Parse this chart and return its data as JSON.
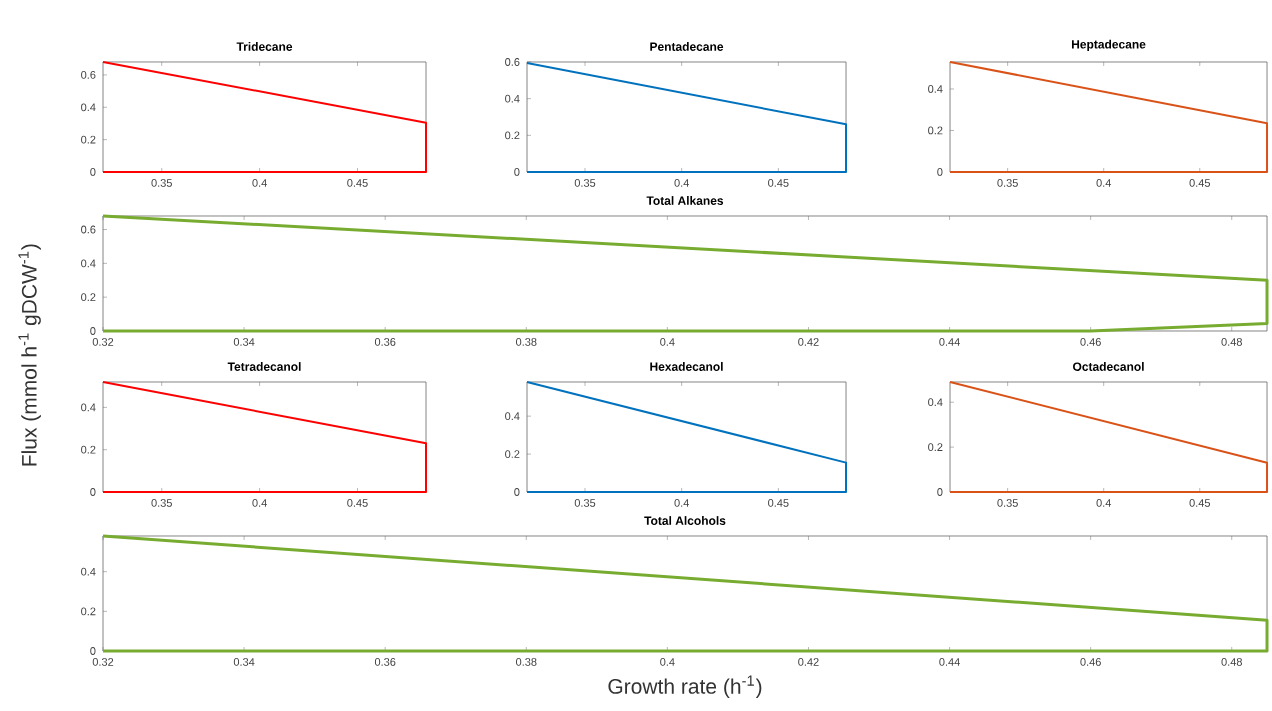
{
  "chart_data": [
    {
      "type": "line",
      "title": "Tridecane",
      "xlim": [
        0.32,
        0.485
      ],
      "xticks": [
        0.35,
        0.4,
        0.45
      ],
      "ylim": [
        0,
        0.68
      ],
      "yticks": [
        0,
        0.2,
        0.4,
        0.6
      ],
      "series": [
        {
          "color": "#ff0000",
          "x": [
            0.32,
            0.485,
            0.485,
            0.32
          ],
          "values": [
            0.68,
            0.305,
            0,
            0
          ]
        }
      ]
    },
    {
      "type": "line",
      "title": "Pentadecane",
      "xlim": [
        0.32,
        0.485
      ],
      "xticks": [
        0.35,
        0.4,
        0.45
      ],
      "ylim": [
        0,
        0.6
      ],
      "yticks": [
        0,
        0.2,
        0.4,
        0.6
      ],
      "series": [
        {
          "color": "#0072bd",
          "x": [
            0.32,
            0.485,
            0.485,
            0.32
          ],
          "values": [
            0.595,
            0.26,
            0,
            0
          ]
        }
      ]
    },
    {
      "type": "line",
      "title": "Heptadecane",
      "xlim": [
        0.32,
        0.485
      ],
      "xticks": [
        0.35,
        0.4,
        0.45
      ],
      "ylim": [
        0,
        0.53
      ],
      "yticks": [
        0,
        0.2,
        0.4
      ],
      "series": [
        {
          "color": "#d95319",
          "x": [
            0.32,
            0.485,
            0.485,
            0.32
          ],
          "values": [
            0.53,
            0.235,
            0,
            0
          ]
        }
      ]
    },
    {
      "type": "line",
      "title": "Total Alkanes",
      "ylabel": "Flux (mmol h$^{-1}$ gDCW$^{-1}$)",
      "xlim": [
        0.32,
        0.485
      ],
      "xticks": [
        0.32,
        0.34,
        0.36,
        0.38,
        0.4,
        0.42,
        0.44,
        0.46,
        0.48
      ],
      "ylim": [
        0,
        0.68
      ],
      "yticks": [
        0,
        0.2,
        0.4,
        0.6
      ],
      "series": [
        {
          "color": "#77ac30",
          "x": [
            0.32,
            0.485,
            0.485,
            0.46,
            0.32
          ],
          "values": [
            0.68,
            0.3,
            0.045,
            0,
            0
          ]
        }
      ]
    },
    {
      "type": "line",
      "title": "Tetradecanol",
      "xlim": [
        0.32,
        0.485
      ],
      "xticks": [
        0.35,
        0.4,
        0.45
      ],
      "ylim": [
        0,
        0.52
      ],
      "yticks": [
        0,
        0.2,
        0.4
      ],
      "series": [
        {
          "color": "#ff0000",
          "x": [
            0.32,
            0.485,
            0.485,
            0.32
          ],
          "values": [
            0.52,
            0.23,
            0,
            0
          ]
        }
      ]
    },
    {
      "type": "line",
      "title": "Hexadecanol",
      "xlim": [
        0.32,
        0.485
      ],
      "xticks": [
        0.35,
        0.4,
        0.45
      ],
      "ylim": [
        0,
        0.58
      ],
      "yticks": [
        0,
        0.2,
        0.4
      ],
      "series": [
        {
          "color": "#0072bd",
          "x": [
            0.32,
            0.485,
            0.485,
            0.32
          ],
          "values": [
            0.58,
            0.155,
            0,
            0
          ]
        }
      ]
    },
    {
      "type": "line",
      "title": "Octadecanol",
      "xlim": [
        0.32,
        0.485
      ],
      "xticks": [
        0.35,
        0.4,
        0.45
      ],
      "ylim": [
        0,
        0.49
      ],
      "yticks": [
        0,
        0.2,
        0.4
      ],
      "series": [
        {
          "color": "#d95319",
          "x": [
            0.32,
            0.485,
            0.485,
            0.32
          ],
          "values": [
            0.49,
            0.13,
            0,
            0
          ]
        }
      ]
    },
    {
      "type": "line",
      "title": "Total Alcohols",
      "xlabel": "Growth rate (h$^{-1}$)",
      "xlim": [
        0.32,
        0.485
      ],
      "xticks": [
        0.32,
        0.34,
        0.36,
        0.38,
        0.4,
        0.42,
        0.44,
        0.46,
        0.48
      ],
      "ylim": [
        0,
        0.58
      ],
      "yticks": [
        0,
        0.2,
        0.4
      ],
      "series": [
        {
          "color": "#77ac30",
          "x": [
            0.32,
            0.485,
            0.485,
            0.32
          ],
          "values": [
            0.58,
            0.155,
            0,
            0
          ]
        }
      ]
    }
  ]
}
